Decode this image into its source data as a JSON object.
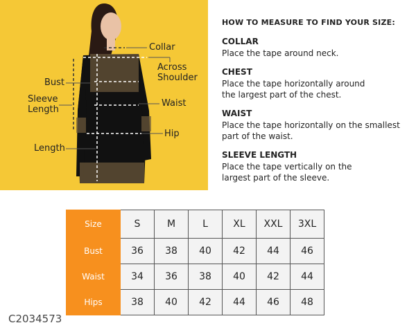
{
  "illustration": {
    "background_color": "#f5c836",
    "labels": [
      "Collar",
      "Across Shoulder",
      "Bust",
      "Sleeve Length",
      "Waist",
      "Hip",
      "Length"
    ]
  },
  "instructions": {
    "heading": "HOW TO MEASURE TO FIND YOUR SIZE:",
    "sections": [
      {
        "title": "COLLAR",
        "text": "Place the tape around neck."
      },
      {
        "title": "CHEST",
        "text": "Place the tape horizontally around the largest part of the chest."
      },
      {
        "title": "WAIST",
        "text": "Place the tape horizontally on the smallest part of the waist."
      },
      {
        "title": "SLEEVE LENGTH",
        "text": "Place the tape vertically on the largest part of the sleeve."
      }
    ]
  },
  "size_table": {
    "header_color": "#f7901e",
    "header": "Size",
    "sizes": [
      "S",
      "M",
      "L",
      "XL",
      "XXL",
      "3XL"
    ],
    "rows": [
      {
        "label": "Bust",
        "values": [
          "36",
          "38",
          "40",
          "42",
          "44",
          "46"
        ]
      },
      {
        "label": "Waist",
        "values": [
          "34",
          "36",
          "38",
          "40",
          "42",
          "44"
        ]
      },
      {
        "label": "Hips",
        "values": [
          "38",
          "40",
          "42",
          "44",
          "46",
          "48"
        ]
      }
    ]
  },
  "product_code": "C2034573"
}
